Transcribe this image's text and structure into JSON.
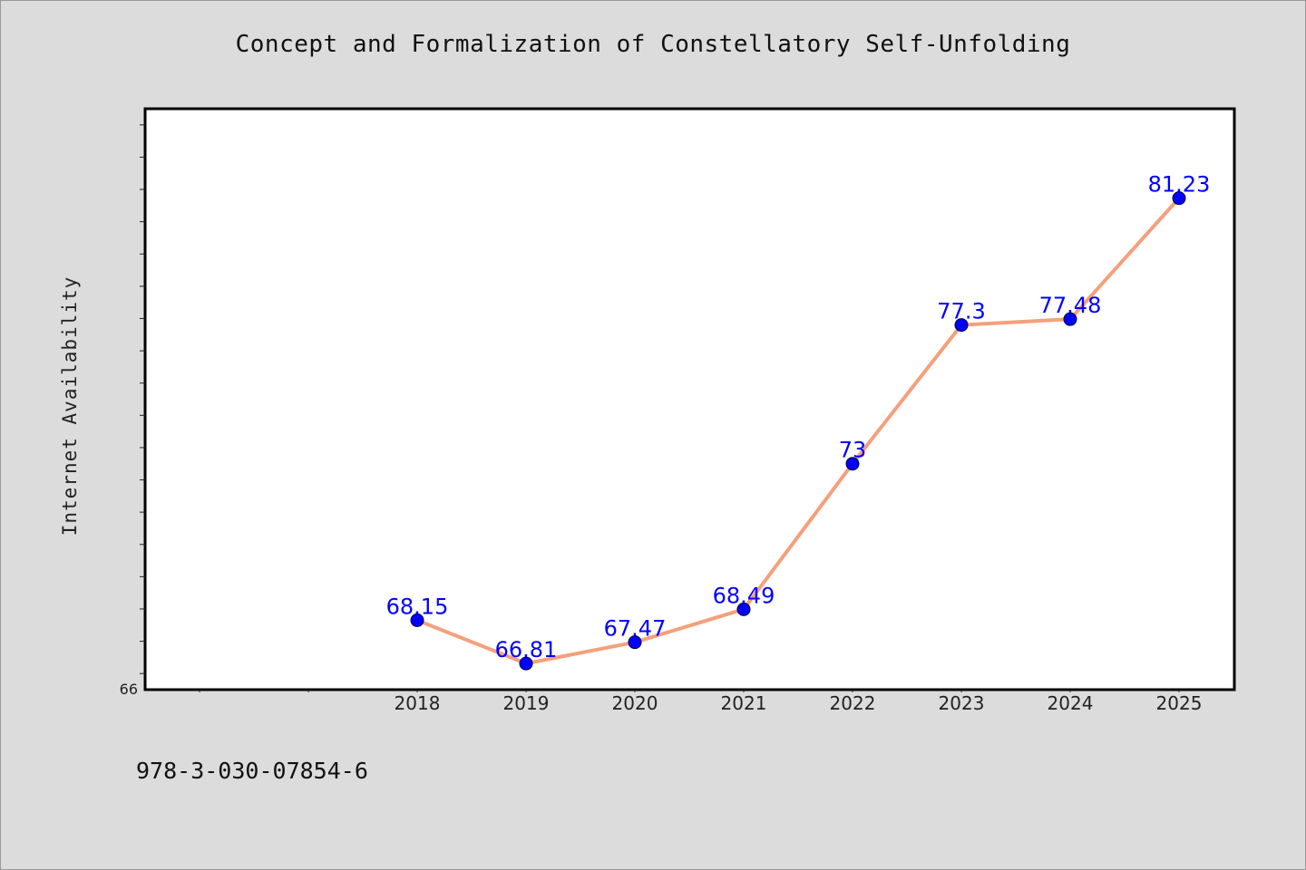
{
  "chart_data": {
    "type": "line",
    "title": "Concept and Formalization of Constellatory Self-Unfolding",
    "xlabel": "",
    "ylabel": "Internet Availability",
    "x": [
      "2018",
      "2019",
      "2020",
      "2021",
      "2022",
      "2023",
      "2024",
      "2025"
    ],
    "series": [
      {
        "values": [
          68.15,
          66.81,
          67.47,
          68.49,
          73,
          77.3,
          77.48,
          81.23
        ],
        "data_labels": [
          "68.15",
          "66.81",
          "67.47",
          "68.49",
          "73",
          "77.3",
          "77.48",
          "81.23"
        ]
      }
    ],
    "ylim": [
      66,
      84
    ],
    "y_tick_label_min": "66",
    "grid": false,
    "legend": "none",
    "colors": {
      "line": "#f4a07c",
      "marker": "#0000ff",
      "label": "#0000ff",
      "background": "#dcdcdc",
      "plot_background": "#ffffff"
    }
  },
  "footer": {
    "isbn": "978-3-030-07854-6"
  }
}
